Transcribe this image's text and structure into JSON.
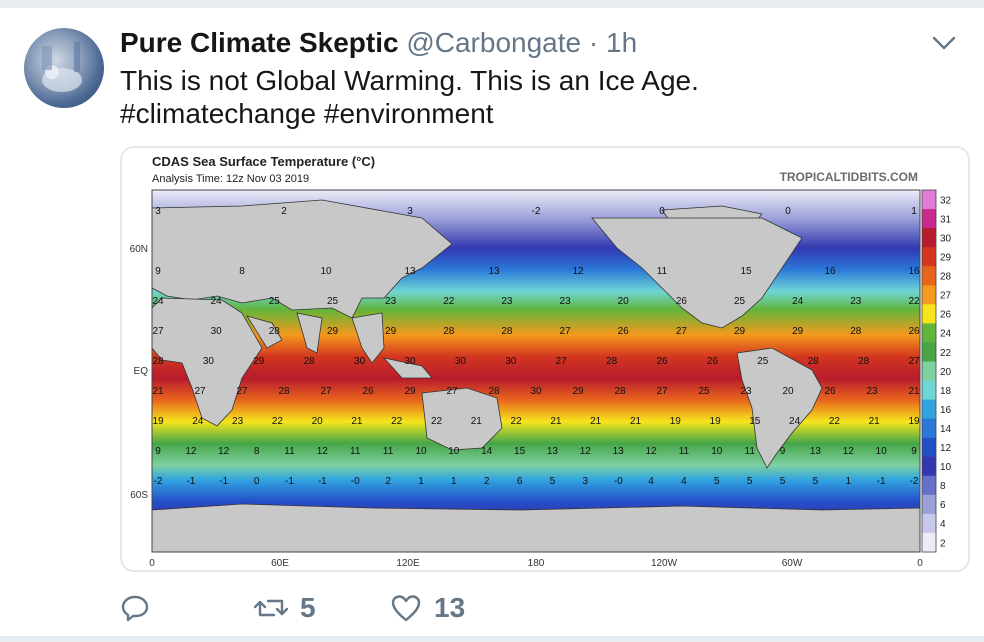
{
  "tweet": {
    "display_name": "Pure Climate Skeptic",
    "handle": "@Carbongate",
    "separator": "·",
    "time": "1h",
    "text_line1": "This is not Global Warming. This is an Ice Age.",
    "text_line2": "#climatechange #environment"
  },
  "map": {
    "title": "CDAS Sea Surface Temperature (°C)",
    "subtitle": "Analysis Time: 12z Nov 03 2019",
    "source": "TROPICALTIDBITS.COM",
    "lat_labels": [
      "60N",
      "EQ",
      "60S"
    ],
    "lon_labels": [
      "0",
      "60E",
      "120E",
      "180",
      "120W",
      "60W",
      "0"
    ],
    "colorbar_labels": [
      "32",
      "31",
      "30",
      "29",
      "28",
      "27",
      "26",
      "24",
      "22",
      "20",
      "18",
      "16",
      "14",
      "12",
      "10",
      "8",
      "6",
      "4",
      "2"
    ],
    "colorbar_colors": [
      "#e27ad8",
      "#c82b8e",
      "#b81b2d",
      "#d3371f",
      "#e8651d",
      "#f49a1e",
      "#f6e51d",
      "#62b43a",
      "#46a648",
      "#7fd0a0",
      "#6fd6d6",
      "#32a5e0",
      "#2b78d8",
      "#2350c8",
      "#3338b0",
      "#6670c8",
      "#9aa0d8",
      "#c8c8ec",
      "#ececf8"
    ],
    "sst_values": [
      {
        "row": "n70",
        "vals": [
          "3",
          "2",
          "3",
          "-2",
          "0",
          "0",
          "1"
        ]
      },
      {
        "row": "n45",
        "vals": [
          "9",
          "8",
          "10",
          "13",
          "13",
          "12",
          "11",
          "15",
          "16",
          "16"
        ]
      },
      {
        "row": "n30",
        "vals": [
          "24",
          "24",
          "25",
          "25",
          "23",
          "22",
          "23",
          "23",
          "20",
          "26",
          "25",
          "24",
          "23",
          "22"
        ]
      },
      {
        "row": "n15",
        "vals": [
          "27",
          "30",
          "28",
          "29",
          "29",
          "28",
          "28",
          "27",
          "26",
          "27",
          "29",
          "29",
          "28",
          "26"
        ]
      },
      {
        "row": "eq",
        "vals": [
          "28",
          "30",
          "29",
          "28",
          "30",
          "30",
          "30",
          "30",
          "27",
          "28",
          "26",
          "26",
          "25",
          "28",
          "28",
          "27"
        ]
      },
      {
        "row": "s15",
        "vals": [
          "21",
          "27",
          "27",
          "28",
          "27",
          "26",
          "29",
          "27",
          "28",
          "30",
          "29",
          "28",
          "27",
          "25",
          "23",
          "20",
          "26",
          "23",
          "21"
        ]
      },
      {
        "row": "s30",
        "vals": [
          "19",
          "24",
          "23",
          "22",
          "20",
          "21",
          "22",
          "22",
          "21",
          "22",
          "21",
          "21",
          "21",
          "19",
          "19",
          "15",
          "24",
          "22",
          "21",
          "19"
        ]
      },
      {
        "row": "s45",
        "vals": [
          "9",
          "12",
          "12",
          "8",
          "11",
          "12",
          "11",
          "11",
          "10",
          "10",
          "14",
          "15",
          "13",
          "12",
          "13",
          "12",
          "11",
          "10",
          "11",
          "9",
          "13",
          "12",
          "10",
          "9"
        ]
      },
      {
        "row": "s60",
        "vals": [
          "-2",
          "-1",
          "-1",
          "0",
          "-1",
          "-1",
          "-0",
          "2",
          "1",
          "1",
          "2",
          "6",
          "5",
          "3",
          "-0",
          "4",
          "4",
          "5",
          "5",
          "5",
          "5",
          "1",
          "-1",
          "-2"
        ]
      }
    ]
  },
  "actions": {
    "reply_count": "",
    "retweet_count": "5",
    "like_count": "13"
  },
  "colors": {
    "text_primary": "#14171a",
    "text_secondary": "#657786",
    "border": "#e1e8ed",
    "land": "#c8c8c8"
  }
}
